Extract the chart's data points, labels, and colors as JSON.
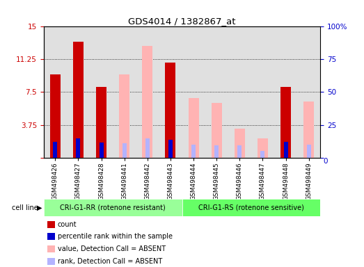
{
  "title": "GDS4014 / 1382867_at",
  "samples": [
    "GSM498426",
    "GSM498427",
    "GSM498428",
    "GSM498441",
    "GSM498442",
    "GSM498443",
    "GSM498444",
    "GSM498445",
    "GSM498446",
    "GSM498447",
    "GSM498448",
    "GSM498449"
  ],
  "count_values": [
    9.5,
    13.3,
    8.1,
    null,
    null,
    10.9,
    null,
    null,
    null,
    null,
    8.1,
    null
  ],
  "rank_values": [
    1.8,
    2.2,
    1.7,
    null,
    null,
    2.0,
    null,
    null,
    null,
    null,
    1.8,
    null
  ],
  "absent_value": [
    null,
    null,
    null,
    9.5,
    12.8,
    null,
    6.8,
    6.3,
    3.3,
    2.2,
    null,
    6.4
  ],
  "absent_rank": [
    null,
    null,
    null,
    1.6,
    2.2,
    null,
    1.5,
    1.4,
    1.4,
    0.8,
    null,
    1.5
  ],
  "group1_label": "CRI-G1-RR (rotenone resistant)",
  "group2_label": "CRI-G1-RS (rotenone sensitive)",
  "ylim_left": [
    0,
    15
  ],
  "ylim_right": [
    0,
    100
  ],
  "yticks_left": [
    0,
    3.75,
    7.5,
    11.25,
    15
  ],
  "yticks_right": [
    0,
    25,
    50,
    75,
    100
  ],
  "color_count": "#cc0000",
  "color_rank": "#0000cc",
  "color_absent_value": "#ffb3b3",
  "color_absent_rank": "#b3b3ff",
  "color_group1_bg": "#99ff99",
  "color_group2_bg": "#66ff66",
  "color_tick_left": "#cc0000",
  "color_tick_right": "#0000cc",
  "legend_items": [
    {
      "label": "count",
      "color": "#cc0000"
    },
    {
      "label": "percentile rank within the sample",
      "color": "#0000cc"
    },
    {
      "label": "value, Detection Call = ABSENT",
      "color": "#ffb3b3"
    },
    {
      "label": "rank, Detection Call = ABSENT",
      "color": "#b3b3ff"
    }
  ]
}
